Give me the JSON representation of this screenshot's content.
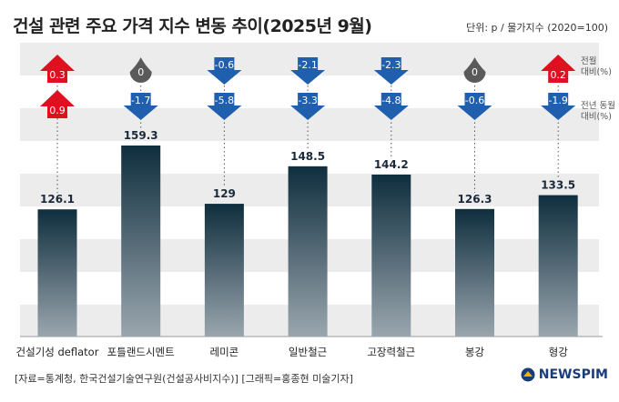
{
  "title": "건설 관련 주요 가격 지수 변동 추이(2025년 9월)",
  "unit": "단위: p / 물가지수 (2020=100)",
  "source": "[자료=통계청, 한국건설기술연구원(건설공사비지수)] [그래픽=홍종현 미술기자]",
  "brand": "NEWSPIM",
  "colors": {
    "up": "#e01020",
    "down": "#1f5fae",
    "flat": "#5a5a5a",
    "bar_top": "#0f2e3e",
    "bar_bottom": "#9aa6ae",
    "band": "#ececec"
  },
  "chart_data": {
    "type": "bar",
    "title": "건설 관련 주요 가격 지수 변동 추이(2025년 9월)",
    "categories": [
      "건설기성 deflator",
      "포틀랜드시멘트",
      "레미콘",
      "일반철근",
      "고장력철근",
      "봉강",
      "형강"
    ],
    "values": [
      126.1,
      159.3,
      129,
      148.5,
      144.2,
      126.3,
      133.5
    ],
    "value_labels": [
      "126.1",
      "159.3",
      "129",
      "148.5",
      "144.2",
      "126.3",
      "133.5"
    ],
    "ylim": [
      60,
      170
    ],
    "series_changes": [
      {
        "name": "전월 대비(%)",
        "name_lines": [
          "전월",
          "대비(%)"
        ],
        "values": [
          0.3,
          0,
          -0.6,
          -2.1,
          -2.3,
          0,
          0.2
        ],
        "labels": [
          "0.3",
          "0",
          "-0.6",
          "-2.1",
          "-2.3",
          "0",
          "0.2"
        ]
      },
      {
        "name": "전년 동월 대비(%)",
        "name_lines": [
          "전년 동월",
          "대비(%)"
        ],
        "values": [
          0.9,
          -1.7,
          -5.8,
          -3.3,
          -4.8,
          -0.6,
          -1.9
        ],
        "labels": [
          "0.9",
          "-1.7",
          "-5.8",
          "-3.3",
          "-4.8",
          "-0.6",
          "-1.9"
        ]
      }
    ]
  }
}
